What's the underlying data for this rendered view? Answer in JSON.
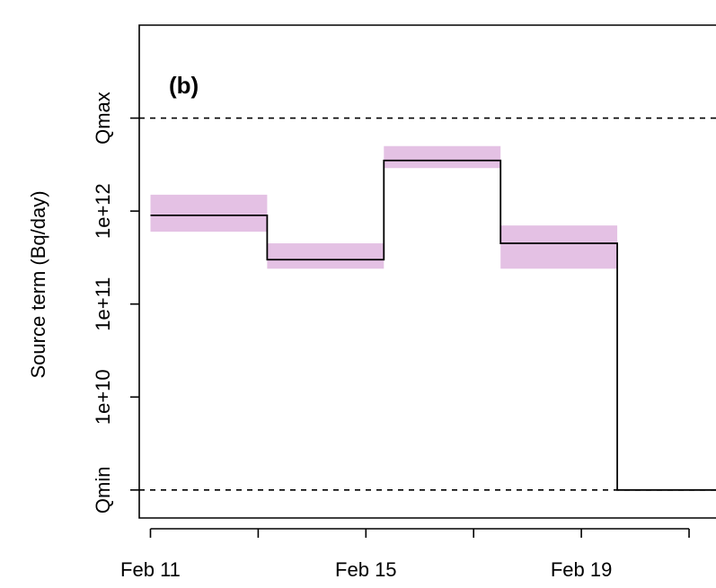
{
  "chart_data": {
    "type": "line",
    "panel_label": "(b)",
    "title": "",
    "xlabel": "",
    "ylabel": "Source term (Bq/day)",
    "y_scale": "log",
    "ylim": [
      500000000.0,
      100000000000000.0
    ],
    "xlim": [
      "2024-02-10T19:00",
      "2024-02-21T12:00"
    ],
    "x_tick_positions": [
      "2024-02-11",
      "2024-02-13",
      "2024-02-15",
      "2024-02-17",
      "2024-02-19",
      "2024-02-21"
    ],
    "x_tick_labels": [
      {
        "x": "2024-02-11",
        "label": "Feb 11"
      },
      {
        "x": "2024-02-15",
        "label": "Feb 15"
      },
      {
        "x": "2024-02-19",
        "label": "Feb 19"
      }
    ],
    "y_ticks": [
      {
        "value": 1000000000.0,
        "label": "Qmin"
      },
      {
        "value": 10000000000.0,
        "label": "1e+10"
      },
      {
        "value": 100000000000.0,
        "label": "1e+11"
      },
      {
        "value": 1000000000000.0,
        "label": "1e+12"
      },
      {
        "value": 10000000000000.0,
        "label": "Qmax"
      }
    ],
    "reference_lines": [
      {
        "name": "Qmax",
        "value": 10000000000000.0,
        "style": "dashed"
      },
      {
        "name": "Qmin",
        "value": 1000000000.0,
        "style": "dashed"
      }
    ],
    "series": [
      {
        "line_color": "#000000",
        "band_color": "#e4c1e4",
        "segments": [
          {
            "start": "2024-02-11T00:00",
            "end": "2024-02-13T04:00",
            "value": 900000000000.0,
            "lower": 600000000000.0,
            "upper": 1500000000000.0
          },
          {
            "start": "2024-02-13T04:00",
            "end": "2024-02-15T08:00",
            "value": 300000000000.0,
            "lower": 240000000000.0,
            "upper": 450000000000.0
          },
          {
            "start": "2024-02-15T08:00",
            "end": "2024-02-17T12:00",
            "value": 3500000000000.0,
            "lower": 2900000000000.0,
            "upper": 5000000000000.0
          },
          {
            "start": "2024-02-17T12:00",
            "end": "2024-02-19T16:00",
            "value": 450000000000.0,
            "lower": 240000000000.0,
            "upper": 700000000000.0
          },
          {
            "start": "2024-02-19T16:00",
            "end": "2024-02-21T12:00",
            "value": 1000000000.0
          }
        ]
      }
    ],
    "grid": false,
    "legend": "none"
  }
}
